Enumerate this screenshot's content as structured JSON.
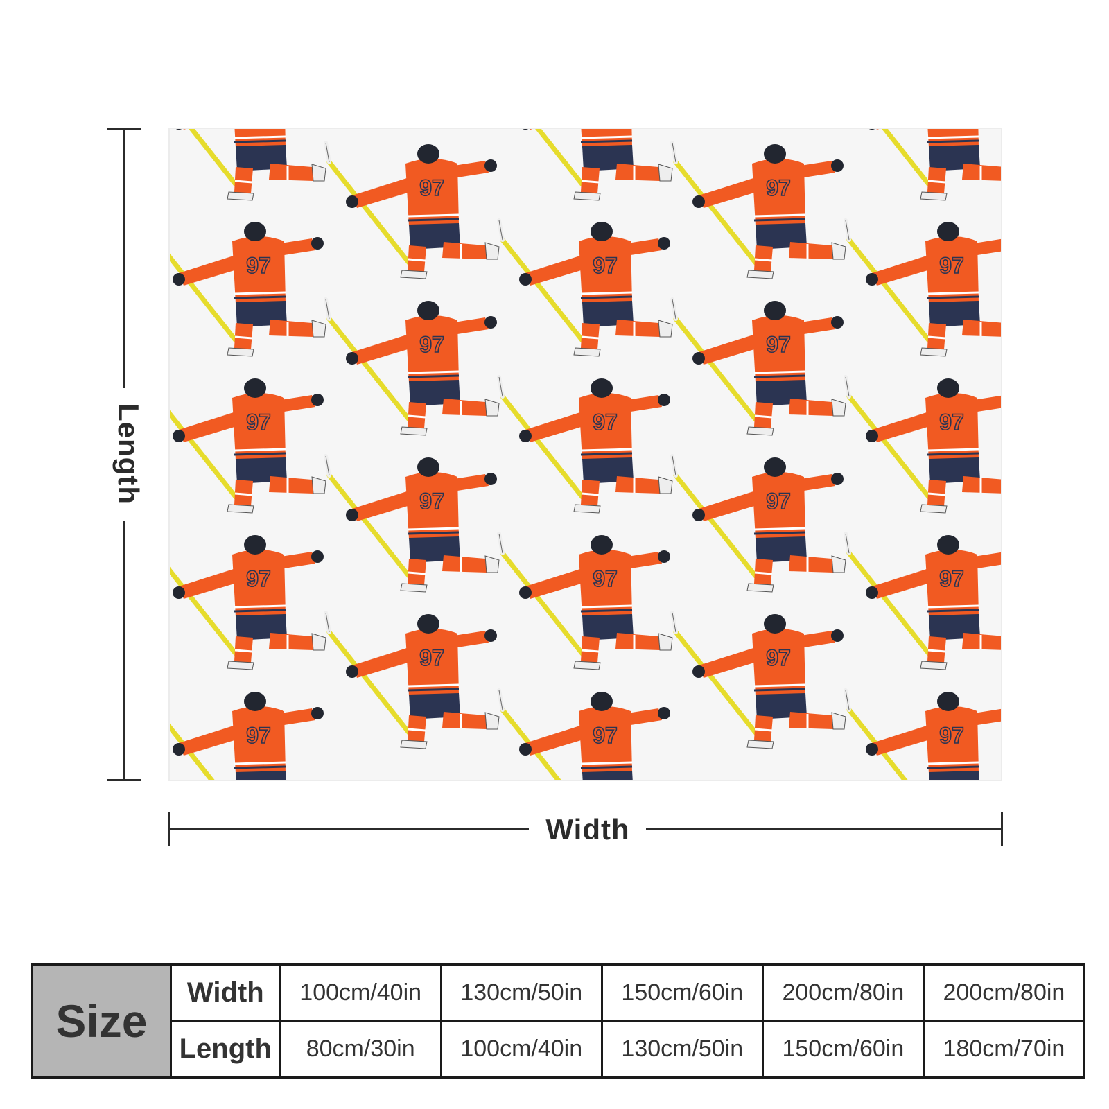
{
  "diagram": {
    "length_label": "Length",
    "width_label": "Width",
    "print_pattern": {
      "motif": "hockey-player-kneeling-celebration",
      "jersey_number": "97",
      "colors": {
        "jersey": "#f15a22",
        "pants": "#2b3452",
        "stick_shaft": "#e6dc2c",
        "helmet": "#222630",
        "background": "#f6f6f6"
      }
    }
  },
  "size_table": {
    "size_label": "Size",
    "rows": [
      {
        "label": "Width",
        "values": [
          "100cm/40in",
          "130cm/50in",
          "150cm/60in",
          "200cm/80in",
          "200cm/80in"
        ]
      },
      {
        "label": "Length",
        "values": [
          "80cm/30in",
          "100cm/40in",
          "130cm/50in",
          "150cm/60in",
          "180cm/70in"
        ]
      }
    ]
  }
}
